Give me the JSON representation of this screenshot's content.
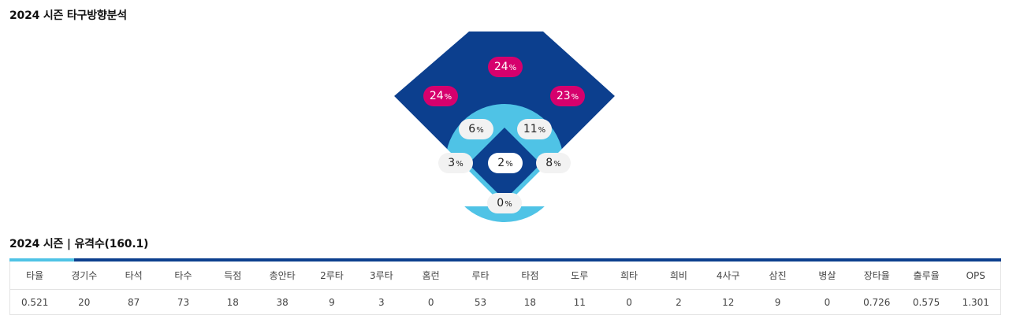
{
  "sections": {
    "direction_title": "2024 시즌 타구방향분석",
    "stats_title": "2024 시즌 | 유격수(160.1)"
  },
  "field_zones": {
    "outfield_center": {
      "value": "24",
      "unit": "%"
    },
    "outfield_left": {
      "value": "24",
      "unit": "%"
    },
    "outfield_right": {
      "value": "23",
      "unit": "%"
    },
    "infield_left_center": {
      "value": "6",
      "unit": "%"
    },
    "infield_right_center": {
      "value": "11",
      "unit": "%"
    },
    "third_base_line": {
      "value": "3",
      "unit": "%"
    },
    "first_base_line": {
      "value": "8",
      "unit": "%"
    },
    "pitcher": {
      "value": "2",
      "unit": "%"
    },
    "catcher": {
      "value": "0",
      "unit": "%"
    }
  },
  "colors": {
    "outfield": "#0c3f8e",
    "infield_ring": "#4fc3e6",
    "hot_pill": "#d6006d",
    "tab_active": "#4fc3e6",
    "tab_bar": "#0c3f8e"
  },
  "stats": {
    "headers": [
      "타율",
      "경기수",
      "타석",
      "타수",
      "득점",
      "총안타",
      "2루타",
      "3루타",
      "홈런",
      "루타",
      "타점",
      "도루",
      "희타",
      "희비",
      "4사구",
      "삼진",
      "병살",
      "장타율",
      "출루율",
      "OPS"
    ],
    "values": [
      "0.521",
      "20",
      "87",
      "73",
      "18",
      "38",
      "9",
      "3",
      "0",
      "53",
      "18",
      "11",
      "0",
      "2",
      "12",
      "9",
      "0",
      "0.726",
      "0.575",
      "1.301"
    ]
  }
}
